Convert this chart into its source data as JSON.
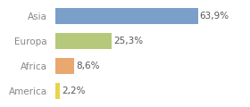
{
  "categories": [
    "America",
    "Africa",
    "Europa",
    "Asia"
  ],
  "values": [
    2.2,
    8.6,
    25.3,
    63.9
  ],
  "labels": [
    "2,2%",
    "8,6%",
    "25,3%",
    "63,9%"
  ],
  "bar_colors": [
    "#e8d44d",
    "#e8a870",
    "#b5c97a",
    "#7a9fc9"
  ],
  "background_color": "#ffffff",
  "xlim": [
    0,
    85
  ],
  "bar_height": 0.65,
  "label_fontsize": 7.5,
  "tick_fontsize": 7.5,
  "tick_color": "#888888",
  "label_color": "#555555"
}
